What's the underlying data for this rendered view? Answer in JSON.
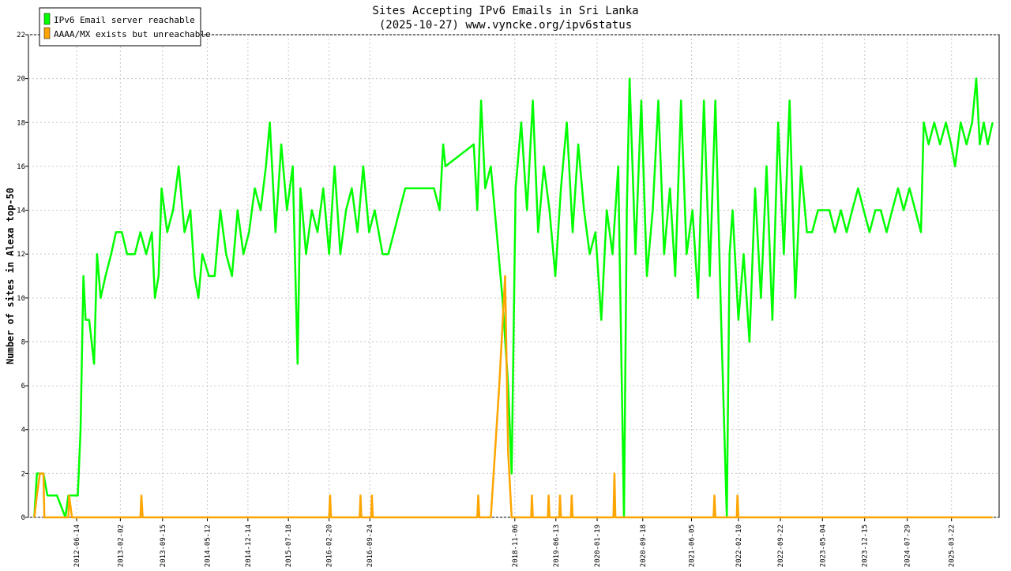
{
  "chart_data": {
    "type": "line",
    "title": "Sites Accepting IPv6 Emails in Sri Lanka",
    "subtitle": "(2025-10-27) www.vyncke.org/ipv6status",
    "xlabel": "",
    "ylabel": "Number of sites in Alexa top-50",
    "ylim": [
      0,
      22
    ],
    "yticks": [
      0,
      2,
      4,
      6,
      8,
      10,
      12,
      14,
      16,
      18,
      20,
      22
    ],
    "grid": true,
    "legend_position": "top-left",
    "x_tick_labels": [
      "2012-06-14",
      "2013-02-02",
      "2013-09-15",
      "2014-05-12",
      "2014-12-14",
      "2015-07-18",
      "2016-02-20",
      "2016-09-24",
      "2018-11-06",
      "2019-06-13",
      "2020-01-19",
      "2020-09-18",
      "2021-06-05",
      "2022-02-10",
      "2022-09-22",
      "2023-05-04",
      "2023-12-15",
      "2024-07-29",
      "2025-03-22"
    ],
    "series": [
      {
        "name": "IPv6 Email server reachable",
        "color": "#00ff00",
        "points": [
          [
            "2011-11-01",
            0
          ],
          [
            "2011-11-15",
            2
          ],
          [
            "2011-12-20",
            2
          ],
          [
            "2012-01-10",
            1
          ],
          [
            "2012-03-01",
            1
          ],
          [
            "2012-04-15",
            0
          ],
          [
            "2012-05-01",
            1
          ],
          [
            "2012-06-20",
            1
          ],
          [
            "2012-07-05",
            4
          ],
          [
            "2012-07-20",
            11
          ],
          [
            "2012-08-01",
            9
          ],
          [
            "2012-08-20",
            9
          ],
          [
            "2012-09-15",
            7
          ],
          [
            "2012-10-01",
            12
          ],
          [
            "2012-10-20",
            10
          ],
          [
            "2012-11-15",
            11
          ],
          [
            "2012-12-15",
            12
          ],
          [
            "2013-01-10",
            13
          ],
          [
            "2013-02-10",
            13
          ],
          [
            "2013-03-10",
            12
          ],
          [
            "2013-04-20",
            12
          ],
          [
            "2013-05-20",
            13
          ],
          [
            "2013-06-20",
            12
          ],
          [
            "2013-07-20",
            13
          ],
          [
            "2013-08-05",
            10
          ],
          [
            "2013-08-25",
            11
          ],
          [
            "2013-09-10",
            15
          ],
          [
            "2013-10-10",
            13
          ],
          [
            "2013-11-10",
            14
          ],
          [
            "2013-12-10",
            16
          ],
          [
            "2014-01-10",
            13
          ],
          [
            "2014-02-10",
            14
          ],
          [
            "2014-03-05",
            11
          ],
          [
            "2014-03-25",
            10
          ],
          [
            "2014-04-15",
            12
          ],
          [
            "2014-05-20",
            11
          ],
          [
            "2014-06-20",
            11
          ],
          [
            "2014-07-20",
            14
          ],
          [
            "2014-08-20",
            12
          ],
          [
            "2014-09-20",
            11
          ],
          [
            "2014-10-20",
            14
          ],
          [
            "2014-11-20",
            12
          ],
          [
            "2014-12-20",
            13
          ],
          [
            "2015-01-20",
            15
          ],
          [
            "2015-02-20",
            14
          ],
          [
            "2015-03-20",
            16
          ],
          [
            "2015-04-10",
            18
          ],
          [
            "2015-05-10",
            13
          ],
          [
            "2015-06-10",
            17
          ],
          [
            "2015-07-10",
            14
          ],
          [
            "2015-08-10",
            16
          ],
          [
            "2015-09-05",
            7
          ],
          [
            "2015-09-20",
            15
          ],
          [
            "2015-10-20",
            12
          ],
          [
            "2015-11-20",
            14
          ],
          [
            "2015-12-20",
            13
          ],
          [
            "2016-01-20",
            15
          ],
          [
            "2016-02-20",
            12
          ],
          [
            "2016-03-20",
            16
          ],
          [
            "2016-04-20",
            12
          ],
          [
            "2016-05-20",
            14
          ],
          [
            "2016-06-20",
            15
          ],
          [
            "2016-07-20",
            13
          ],
          [
            "2016-08-20",
            16
          ],
          [
            "2016-09-20",
            13
          ],
          [
            "2016-10-20",
            14
          ],
          [
            "2016-12-01",
            12
          ],
          [
            "2017-01-01",
            12
          ],
          [
            "2017-04-01",
            15
          ],
          [
            "2017-09-01",
            15
          ],
          [
            "2017-10-01",
            14
          ],
          [
            "2017-10-20",
            17
          ],
          [
            "2017-11-01",
            16
          ],
          [
            "2018-04-01",
            17
          ],
          [
            "2018-04-20",
            14
          ],
          [
            "2018-05-10",
            19
          ],
          [
            "2018-06-01",
            15
          ],
          [
            "2018-07-01",
            16
          ],
          [
            "2018-08-01",
            13
          ],
          [
            "2018-09-01",
            10
          ],
          [
            "2018-10-01",
            6
          ],
          [
            "2018-10-20",
            2
          ],
          [
            "2018-11-10",
            15
          ],
          [
            "2018-12-10",
            18
          ],
          [
            "2019-01-10",
            14
          ],
          [
            "2019-02-10",
            19
          ],
          [
            "2019-03-10",
            13
          ],
          [
            "2019-04-10",
            16
          ],
          [
            "2019-05-10",
            14
          ],
          [
            "2019-06-10",
            11
          ],
          [
            "2019-07-10",
            15
          ],
          [
            "2019-08-10",
            18
          ],
          [
            "2019-09-10",
            13
          ],
          [
            "2019-10-10",
            17
          ],
          [
            "2019-11-10",
            14
          ],
          [
            "2019-12-10",
            12
          ],
          [
            "2020-01-10",
            13
          ],
          [
            "2020-02-10",
            9
          ],
          [
            "2020-03-10",
            14
          ],
          [
            "2020-04-10",
            12
          ],
          [
            "2020-05-10",
            16
          ],
          [
            "2020-06-10",
            0
          ],
          [
            "2020-06-25",
            14
          ],
          [
            "2020-07-10",
            20
          ],
          [
            "2020-08-10",
            12
          ],
          [
            "2020-09-10",
            19
          ],
          [
            "2020-10-10",
            11
          ],
          [
            "2020-11-10",
            14
          ],
          [
            "2020-12-10",
            19
          ],
          [
            "2021-01-10",
            12
          ],
          [
            "2021-02-10",
            15
          ],
          [
            "2021-03-10",
            11
          ],
          [
            "2021-04-10",
            19
          ],
          [
            "2021-05-10",
            12
          ],
          [
            "2021-06-10",
            14
          ],
          [
            "2021-07-10",
            10
          ],
          [
            "2021-08-10",
            19
          ],
          [
            "2021-09-10",
            11
          ],
          [
            "2021-10-10",
            19
          ],
          [
            "2021-11-10",
            9
          ],
          [
            "2021-12-10",
            0
          ],
          [
            "2021-12-25",
            12
          ],
          [
            "2022-01-10",
            14
          ],
          [
            "2022-02-10",
            9
          ],
          [
            "2022-03-10",
            12
          ],
          [
            "2022-04-10",
            8
          ],
          [
            "2022-05-10",
            15
          ],
          [
            "2022-06-10",
            10
          ],
          [
            "2022-07-10",
            16
          ],
          [
            "2022-08-10",
            9
          ],
          [
            "2022-09-10",
            18
          ],
          [
            "2022-10-10",
            12
          ],
          [
            "2022-11-10",
            19
          ],
          [
            "2022-12-10",
            10
          ],
          [
            "2023-01-10",
            16
          ],
          [
            "2023-02-10",
            13
          ],
          [
            "2023-03-10",
            13
          ],
          [
            "2023-04-10",
            14
          ],
          [
            "2023-06-10",
            14
          ],
          [
            "2023-07-10",
            13
          ],
          [
            "2023-08-10",
            14
          ],
          [
            "2023-09-10",
            13
          ],
          [
            "2023-10-10",
            14
          ],
          [
            "2023-11-10",
            15
          ],
          [
            "2023-12-10",
            14
          ],
          [
            "2024-01-10",
            13
          ],
          [
            "2024-02-10",
            14
          ],
          [
            "2024-03-10",
            14
          ],
          [
            "2024-04-10",
            13
          ],
          [
            "2024-05-10",
            14
          ],
          [
            "2024-06-10",
            15
          ],
          [
            "2024-07-10",
            14
          ],
          [
            "2024-08-10",
            15
          ],
          [
            "2024-09-10",
            14
          ],
          [
            "2024-10-10",
            13
          ],
          [
            "2024-10-25",
            18
          ],
          [
            "2024-11-20",
            17
          ],
          [
            "2024-12-20",
            18
          ],
          [
            "2025-01-20",
            17
          ],
          [
            "2025-02-20",
            18
          ],
          [
            "2025-03-20",
            17
          ],
          [
            "2025-04-10",
            16
          ],
          [
            "2025-05-10",
            18
          ],
          [
            "2025-06-10",
            17
          ],
          [
            "2025-07-10",
            18
          ],
          [
            "2025-08-01",
            20
          ],
          [
            "2025-08-20",
            17
          ],
          [
            "2025-09-10",
            18
          ],
          [
            "2025-10-01",
            17
          ],
          [
            "2025-10-27",
            18
          ]
        ]
      },
      {
        "name": "AAAA/MX exists but unreachable",
        "color": "#ffa500",
        "points": [
          [
            "2011-11-01",
            0
          ],
          [
            "2011-11-15",
            1
          ],
          [
            "2011-12-01",
            2
          ],
          [
            "2011-12-20",
            2
          ],
          [
            "2011-12-25",
            0
          ],
          [
            "2012-05-01",
            0
          ],
          [
            "2012-05-05",
            1
          ],
          [
            "2012-05-20",
            0
          ],
          [
            "2013-05-20",
            0
          ],
          [
            "2013-05-25",
            1
          ],
          [
            "2013-06-01",
            0
          ],
          [
            "2016-02-20",
            0
          ],
          [
            "2016-02-25",
            1
          ],
          [
            "2016-03-01",
            0
          ],
          [
            "2016-08-01",
            0
          ],
          [
            "2016-08-05",
            1
          ],
          [
            "2016-08-10",
            0
          ],
          [
            "2016-10-01",
            0
          ],
          [
            "2016-10-05",
            1
          ],
          [
            "2016-10-10",
            0
          ],
          [
            "2018-04-20",
            0
          ],
          [
            "2018-04-25",
            1
          ],
          [
            "2018-05-01",
            0
          ],
          [
            "2018-07-01",
            0
          ],
          [
            "2018-08-15",
            6
          ],
          [
            "2018-09-15",
            11
          ],
          [
            "2018-10-01",
            3
          ],
          [
            "2018-10-20",
            0
          ],
          [
            "2019-02-01",
            0
          ],
          [
            "2019-02-05",
            1
          ],
          [
            "2019-02-10",
            0
          ],
          [
            "2019-05-01",
            0
          ],
          [
            "2019-05-05",
            1
          ],
          [
            "2019-05-10",
            0
          ],
          [
            "2019-07-01",
            0
          ],
          [
            "2019-07-05",
            1
          ],
          [
            "2019-07-10",
            0
          ],
          [
            "2019-09-01",
            0
          ],
          [
            "2019-09-05",
            1
          ],
          [
            "2019-09-10",
            0
          ],
          [
            "2020-04-15",
            0
          ],
          [
            "2020-04-20",
            2
          ],
          [
            "2020-04-25",
            0
          ],
          [
            "2021-10-01",
            0
          ],
          [
            "2021-10-05",
            1
          ],
          [
            "2021-10-10",
            0
          ],
          [
            "2022-02-01",
            0
          ],
          [
            "2022-02-05",
            1
          ],
          [
            "2022-02-10",
            0
          ],
          [
            "2025-10-27",
            0
          ]
        ]
      }
    ]
  }
}
